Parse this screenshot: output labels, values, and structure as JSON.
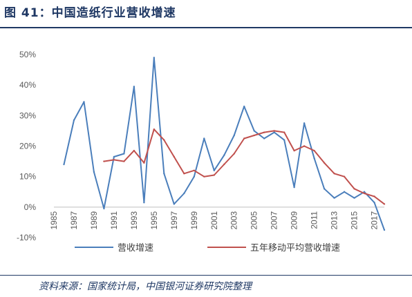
{
  "header": {
    "title": "图 41：中国造纸行业营收增速"
  },
  "footer": {
    "source": "资料来源：国家统计局，中国银河证券研究院整理"
  },
  "chart_data": {
    "type": "line",
    "title": "",
    "xlabel": "",
    "ylabel": "",
    "x_tick_labels": [
      "1985",
      "1987",
      "1989",
      "1991",
      "1993",
      "1995",
      "1997",
      "1999",
      "2001",
      "2003",
      "2005",
      "2007",
      "2009",
      "2011",
      "2013",
      "2015",
      "2017"
    ],
    "y_tick_labels": [
      "50%",
      "40%",
      "30%",
      "20%",
      "10%",
      "0%",
      "-10%"
    ],
    "ylim": [
      -10,
      50
    ],
    "xlim": [
      1985,
      2018
    ],
    "grid": false,
    "legend": "bottom",
    "series": [
      {
        "name": "营收增速",
        "color": "#4a7ebb",
        "x": [
          1986,
          1987,
          1988,
          1989,
          1990,
          1991,
          1992,
          1993,
          1994,
          1995,
          1996,
          1997,
          1998,
          1999,
          2000,
          2001,
          2002,
          2003,
          2004,
          2005,
          2006,
          2007,
          2008,
          2009,
          2010,
          2011,
          2012,
          2013,
          2014,
          2015,
          2016,
          2017,
          2018
        ],
        "values": [
          14,
          28.5,
          34.5,
          11.5,
          -0.5,
          16.5,
          17.5,
          39.5,
          1.5,
          49,
          11,
          1,
          4.5,
          10,
          22.5,
          12,
          17,
          23.5,
          33,
          25,
          22.5,
          24.5,
          22,
          6.5,
          27.5,
          16,
          6,
          3,
          5,
          3,
          5,
          1.5,
          -7.5
        ]
      },
      {
        "name": "五年移动平均营收增速",
        "color": "#c0504d",
        "x": [
          1990,
          1991,
          1992,
          1993,
          1994,
          1995,
          1996,
          1997,
          1998,
          1999,
          2000,
          2001,
          2002,
          2003,
          2004,
          2005,
          2006,
          2007,
          2008,
          2009,
          2010,
          2011,
          2012,
          2013,
          2014,
          2015,
          2016,
          2017,
          2018
        ],
        "values": [
          15,
          15.5,
          15,
          18.5,
          14.5,
          25.5,
          22,
          16.5,
          11,
          12,
          10,
          10.5,
          14,
          17.5,
          22.5,
          23.5,
          24.5,
          25,
          24.5,
          18.5,
          20,
          18.5,
          14.5,
          11,
          10,
          6,
          4.5,
          3.5,
          1
        ]
      }
    ]
  }
}
